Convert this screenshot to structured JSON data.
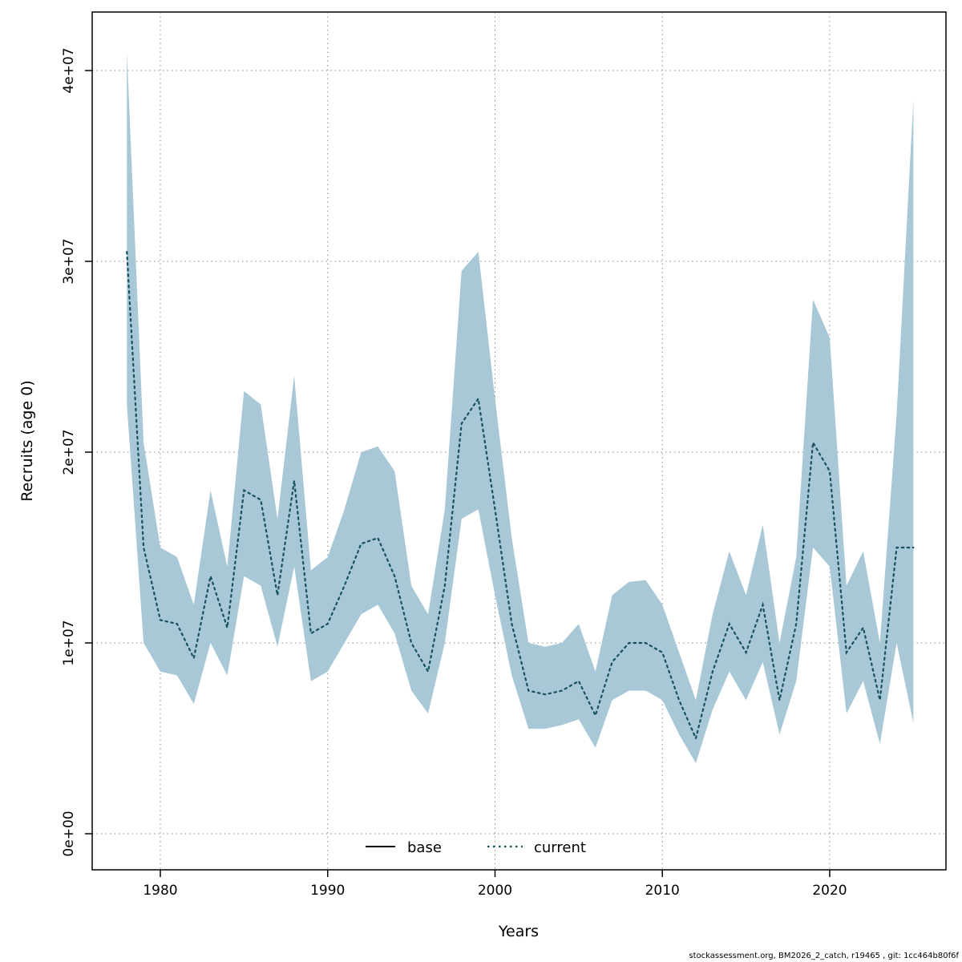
{
  "footer": {
    "text": "stockassessment.org, BM2026_2_catch, r19465 , git: 1cc464b80f6f"
  },
  "chart_data": {
    "type": "line",
    "title": "",
    "xlabel": "Years",
    "ylabel": "Recruits (age 0)",
    "grid": true,
    "legend_position": "bottom-center-inside",
    "x_ticks": [
      1980,
      1990,
      2000,
      2010,
      2020
    ],
    "y_ticks": [
      "0e+00",
      "1e+07",
      "2e+07",
      "3e+07",
      "4e+07"
    ],
    "y_tick_values": [
      0,
      10000000,
      20000000,
      30000000,
      40000000
    ],
    "xlim": [
      1976,
      2026.5
    ],
    "ylim": [
      0,
      43000000
    ],
    "band_color": "#a9c8d7",
    "line_color": "#17505f",
    "grid_color": "#8a8a8a",
    "legend": [
      {
        "label": "base",
        "style": "solid",
        "color": "#000000"
      },
      {
        "label": "current",
        "style": "dotted",
        "color": "#17505f"
      }
    ],
    "series": [
      {
        "name": "current",
        "x": [
          1978,
          1979,
          1980,
          1981,
          1982,
          1983,
          1984,
          1985,
          1986,
          1987,
          1988,
          1989,
          1990,
          1991,
          1992,
          1993,
          1994,
          1995,
          1996,
          1997,
          1998,
          1999,
          2000,
          2001,
          2002,
          2003,
          2004,
          2005,
          2006,
          2007,
          2008,
          2009,
          2010,
          2011,
          2012,
          2013,
          2014,
          2015,
          2016,
          2017,
          2018,
          2019,
          2020,
          2021,
          2022,
          2023,
          2024,
          2025
        ],
        "median": [
          30500000,
          15000000,
          11200000,
          11000000,
          9200000,
          13500000,
          10800000,
          18000000,
          17500000,
          12500000,
          18500000,
          10500000,
          11000000,
          13000000,
          15200000,
          15500000,
          13500000,
          10000000,
          8500000,
          13000000,
          21500000,
          22800000,
          17000000,
          11000000,
          7500000,
          7300000,
          7500000,
          8000000,
          6200000,
          9000000,
          10000000,
          10000000,
          9500000,
          7000000,
          5000000,
          8500000,
          11000000,
          9500000,
          12000000,
          7000000,
          11000000,
          20500000,
          19000000,
          9500000,
          10800000,
          7000000,
          15000000,
          15000000
        ],
        "lower": [
          22500000,
          10000000,
          8500000,
          8300000,
          6800000,
          10000000,
          8300000,
          13500000,
          13000000,
          9800000,
          14000000,
          8000000,
          8500000,
          10000000,
          11500000,
          12000000,
          10500000,
          7500000,
          6300000,
          10000000,
          16500000,
          17000000,
          12500000,
          8300000,
          5500000,
          5500000,
          5700000,
          6000000,
          4500000,
          7000000,
          7500000,
          7500000,
          7000000,
          5200000,
          3700000,
          6500000,
          8500000,
          7000000,
          9000000,
          5200000,
          8000000,
          15000000,
          14000000,
          6300000,
          8000000,
          4700000,
          10000000,
          5800000
        ],
        "upper": [
          41000000,
          20500000,
          15000000,
          14500000,
          12000000,
          18000000,
          14000000,
          23200000,
          22500000,
          16500000,
          24000000,
          13800000,
          14500000,
          17000000,
          20000000,
          20300000,
          19000000,
          13000000,
          11500000,
          17000000,
          29500000,
          30500000,
          22800000,
          15500000,
          10000000,
          9800000,
          10000000,
          11000000,
          8500000,
          12500000,
          13200000,
          13300000,
          12000000,
          9500000,
          7000000,
          11500000,
          14800000,
          12500000,
          16200000,
          10000000,
          14500000,
          28000000,
          26000000,
          13000000,
          14800000,
          10000000,
          22000000,
          38500000
        ]
      }
    ]
  }
}
